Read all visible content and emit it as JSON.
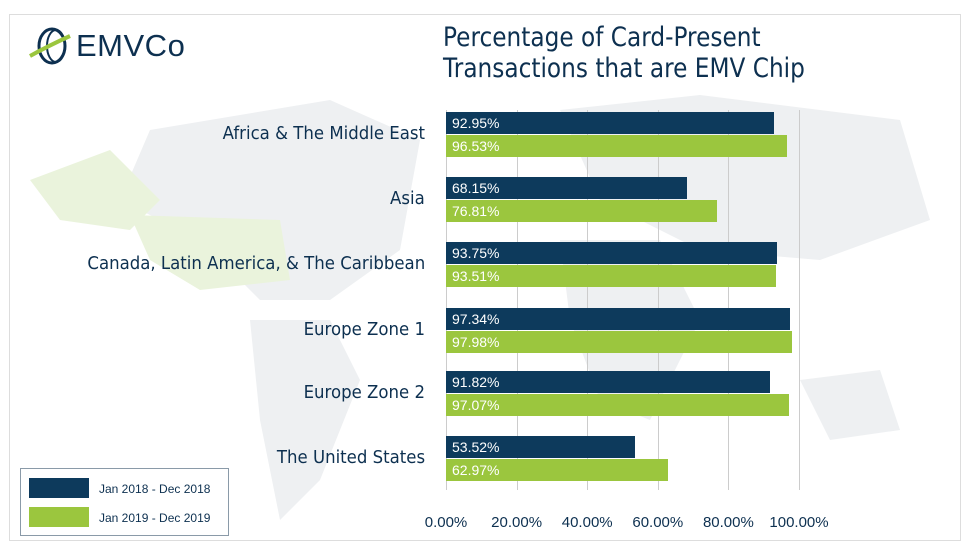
{
  "logo": {
    "text": "EMVCo"
  },
  "colors": {
    "series1": "#0d3a5c",
    "series2": "#9bc63e"
  },
  "chart_data": {
    "type": "bar",
    "orientation": "horizontal",
    "title": "Percentage of Card-Present Transactions that are EMV Chip",
    "title_lines": [
      "Percentage of Card-Present",
      "Transactions that are EMV Chip"
    ],
    "categories": [
      "Africa & The Middle East",
      "Asia",
      "Canada, Latin America, & The Caribbean",
      "Europe Zone 1",
      "Europe Zone 2",
      "The United States"
    ],
    "series": [
      {
        "name": "Jan 2018 - Dec 2018",
        "values": [
          92.95,
          68.15,
          93.75,
          97.34,
          91.82,
          53.52
        ],
        "labels": [
          "92.95%",
          "68.15%",
          "93.75%",
          "97.34%",
          "91.82%",
          "53.52%"
        ]
      },
      {
        "name": "Jan 2019 - Dec 2019",
        "values": [
          96.53,
          76.81,
          93.51,
          97.98,
          97.07,
          62.97
        ],
        "labels": [
          "96.53%",
          "76.81%",
          "93.51%",
          "97.98%",
          "97.07%",
          "62.97%"
        ]
      }
    ],
    "xlim": [
      0,
      100
    ],
    "xticks": [
      0,
      20,
      40,
      60,
      80,
      100
    ],
    "xtick_labels": [
      "0.00%",
      "20.00%",
      "40.00%",
      "60.00%",
      "80.00%",
      "100.00%"
    ],
    "grid": true,
    "legend": "bottom-left"
  }
}
